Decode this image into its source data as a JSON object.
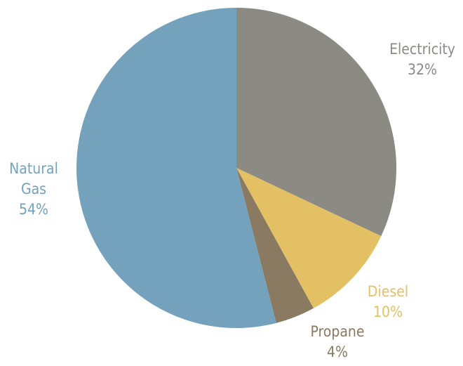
{
  "chart_data": {
    "type": "pie",
    "title": "",
    "slices": [
      {
        "name": "Electricity",
        "label_lines": [
          "Electricity"
        ],
        "percent_label": "32%",
        "value": 32,
        "color": "#8b8b84"
      },
      {
        "name": "Diesel",
        "label_lines": [
          "Diesel"
        ],
        "percent_label": "10%",
        "value": 10,
        "color": "#e4c064"
      },
      {
        "name": "Propane",
        "label_lines": [
          "Propane"
        ],
        "percent_label": "4%",
        "value": 4,
        "color": "#8a7a62"
      },
      {
        "name": "Natural Gas",
        "label_lines": [
          "Natural",
          "Gas"
        ],
        "percent_label": "54%",
        "value": 54,
        "color": "#74a2bd"
      }
    ]
  }
}
